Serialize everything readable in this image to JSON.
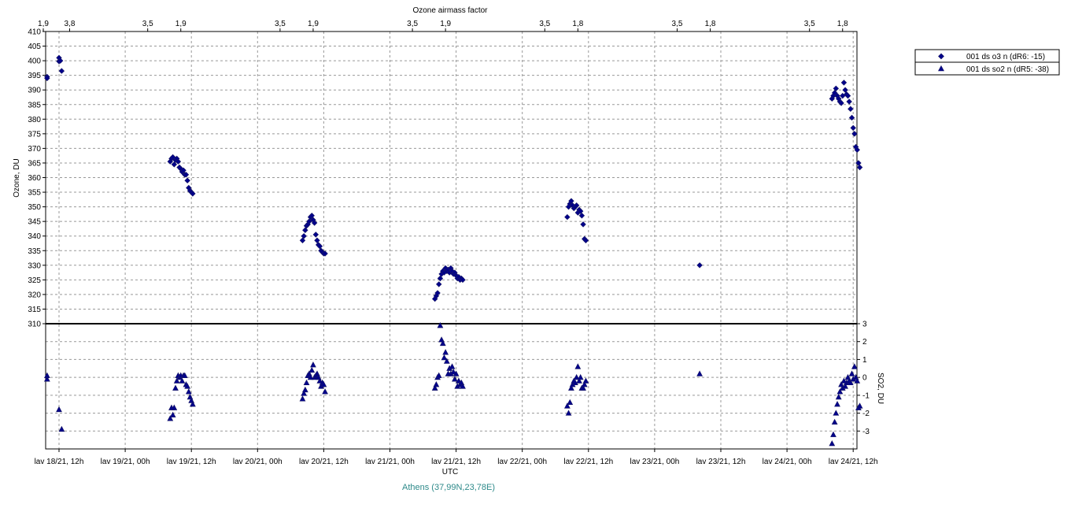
{
  "colors": {
    "marker": "#00008b",
    "marker_edge": "#1a1a66",
    "grid": "#999999",
    "caption": "#2e8a8a"
  },
  "chart_data": [
    {
      "type": "scatter",
      "panel": "top",
      "y_scale": "linear",
      "ylabel": "Ozone, DU",
      "ylim": [
        310,
        410
      ],
      "y_ticks": [
        "310",
        "315",
        "320",
        "325",
        "330",
        "335",
        "340",
        "345",
        "350",
        "355",
        "360",
        "365",
        "370",
        "375",
        "380",
        "385",
        "390",
        "395",
        "400",
        "405",
        "410"
      ],
      "top_axis_title": "Ozone airmass factor",
      "top_axis_ticks": [
        {
          "x": 0.0,
          "label": "1,9"
        },
        {
          "x": 0.08,
          "label": "3,8"
        },
        {
          "x": 0.67,
          "label": "3,5"
        },
        {
          "x": 0.92,
          "label": "1,9"
        },
        {
          "x": 1.67,
          "label": "3,5"
        },
        {
          "x": 1.92,
          "label": "1,9"
        },
        {
          "x": 2.67,
          "label": "3,5"
        },
        {
          "x": 2.92,
          "label": "1,9"
        },
        {
          "x": 3.67,
          "label": "3,5"
        },
        {
          "x": 3.92,
          "label": "1,8"
        },
        {
          "x": 4.67,
          "label": "3,5"
        },
        {
          "x": 4.92,
          "label": "1,8"
        },
        {
          "x": 5.67,
          "label": "3,5"
        },
        {
          "x": 5.92,
          "label": "1,8"
        }
      ],
      "series": [
        {
          "name": "001 ds o3  n (dR6: -15)",
          "marker": "diamond",
          "x": [
            -0.09,
            -0.09,
            0.0,
            0.0,
            0.01,
            0.02,
            0.84,
            0.85,
            0.86,
            0.87,
            0.88,
            0.89,
            0.9,
            0.91,
            0.92,
            0.93,
            0.94,
            0.95,
            0.96,
            0.97,
            0.98,
            0.99,
            1.0,
            1.01,
            1.84,
            1.85,
            1.86,
            1.87,
            1.88,
            1.89,
            1.9,
            1.91,
            1.92,
            1.93,
            1.94,
            1.95,
            1.96,
            1.97,
            1.98,
            1.99,
            2.0,
            2.01,
            2.84,
            2.85,
            2.86,
            2.87,
            2.88,
            2.89,
            2.9,
            2.91,
            2.92,
            2.93,
            2.94,
            2.95,
            2.96,
            2.97,
            2.98,
            2.99,
            3.0,
            3.01,
            3.02,
            3.03,
            3.04,
            3.05,
            3.84,
            3.85,
            3.86,
            3.87,
            3.88,
            3.89,
            3.9,
            3.91,
            3.92,
            3.93,
            3.94,
            3.95,
            3.96,
            3.97,
            3.98,
            4.84,
            5.84,
            5.85,
            5.86,
            5.87,
            5.88,
            5.89,
            5.9,
            5.91,
            5.92,
            5.93,
            5.94,
            5.95,
            5.96,
            5.97,
            5.98,
            5.99,
            6.0,
            6.01,
            6.02,
            6.03,
            6.04,
            6.05
          ],
          "y": [
            394.5,
            394,
            401,
            399.8,
            400,
            396.5,
            365.5,
            366.5,
            367,
            364.5,
            366,
            366.5,
            365.5,
            363.5,
            363,
            362,
            362.5,
            361,
            361,
            359,
            356.5,
            355.5,
            355,
            354.5,
            338.5,
            340,
            342,
            343.5,
            344,
            345,
            346.5,
            347,
            345.5,
            344.5,
            340.5,
            338.5,
            337,
            336.5,
            335,
            334.5,
            334,
            334,
            318.5,
            319.5,
            320.5,
            323.5,
            325.5,
            327,
            328,
            327.5,
            329,
            328,
            328.5,
            327.5,
            329,
            328,
            327,
            327.5,
            326.5,
            325.5,
            326,
            325,
            325.5,
            325,
            346.5,
            350,
            351,
            352,
            350.5,
            349.5,
            350,
            350.5,
            348,
            349,
            348.5,
            347,
            344,
            339,
            338.5,
            330,
            387,
            388,
            389,
            390.5,
            388,
            387,
            386,
            385.5,
            388,
            392.5,
            390,
            388.5,
            388,
            386,
            383.5,
            380.5,
            377,
            375,
            370.5,
            369.5,
            365,
            363.5
          ]
        }
      ]
    },
    {
      "type": "scatter",
      "panel": "bottom",
      "y_scale": "linear",
      "ylabel": "SO2, DU",
      "ylim": [
        -4,
        3
      ],
      "y_ticks": [
        "-3",
        "-2",
        "-1",
        "0",
        "1",
        "2",
        "3"
      ],
      "xlabel": "UTC",
      "x_ticks": [
        "lav 18/21, 12h",
        "lav 19/21, 00h",
        "lav 19/21, 12h",
        "lav 20/21, 00h",
        "lav 20/21, 12h",
        "lav 21/21, 00h",
        "lav 21/21, 12h",
        "lav 22/21, 00h",
        "lav 22/21, 12h",
        "lav 23/21, 00h",
        "lav 23/21, 12h",
        "lav 24/21, 00h",
        "lav 24/21, 12h"
      ],
      "series": [
        {
          "name": "001 ds so2 n (dR5: -38)",
          "marker": "triangle",
          "x": [
            -0.09,
            -0.09,
            0.0,
            0.02,
            0.84,
            0.85,
            0.86,
            0.87,
            0.88,
            0.89,
            0.9,
            0.91,
            0.92,
            0.93,
            0.94,
            0.95,
            0.96,
            0.97,
            0.98,
            0.99,
            1.0,
            1.01,
            1.84,
            1.85,
            1.86,
            1.87,
            1.88,
            1.89,
            1.9,
            1.91,
            1.92,
            1.93,
            1.94,
            1.95,
            1.96,
            1.97,
            1.98,
            1.99,
            2.0,
            2.01,
            2.84,
            2.85,
            2.86,
            2.87,
            2.88,
            2.89,
            2.9,
            2.91,
            2.92,
            2.93,
            2.94,
            2.95,
            2.96,
            2.97,
            2.98,
            2.99,
            3.0,
            3.01,
            3.02,
            3.03,
            3.04,
            3.05,
            3.84,
            3.85,
            3.86,
            3.87,
            3.88,
            3.89,
            3.9,
            3.91,
            3.92,
            3.93,
            3.94,
            3.95,
            3.96,
            3.97,
            3.98,
            4.84,
            5.84,
            5.85,
            5.86,
            5.87,
            5.88,
            5.89,
            5.9,
            5.91,
            5.92,
            5.93,
            5.94,
            5.95,
            5.96,
            5.97,
            5.98,
            5.99,
            6.0,
            6.01,
            6.02,
            6.03,
            6.04,
            6.05
          ],
          "y": [
            0.1,
            -0.1,
            -1.8,
            -2.9,
            -2.3,
            -1.7,
            -2.1,
            -1.7,
            -0.6,
            -0.2,
            0.1,
            0.0,
            0.1,
            -0.2,
            0.1,
            0.1,
            -0.4,
            -0.5,
            -0.8,
            -1.1,
            -1.3,
            -1.5,
            -1.2,
            -0.9,
            -0.7,
            -0.3,
            0.1,
            0.2,
            0.0,
            0.4,
            0.7,
            0.0,
            0.1,
            0.2,
            0.0,
            -0.2,
            -0.5,
            -0.3,
            -0.4,
            -0.8,
            -0.6,
            -0.4,
            0.0,
            0.1,
            2.9,
            2.1,
            1.9,
            1.1,
            1.4,
            0.9,
            0.2,
            0.5,
            0.2,
            0.6,
            0.3,
            -0.1,
            0.2,
            -0.5,
            -0.2,
            -0.4,
            -0.3,
            -0.5,
            -1.6,
            -2.0,
            -1.4,
            -0.6,
            -0.4,
            -0.2,
            -0.3,
            0.0,
            0.6,
            -0.2,
            0.0,
            -0.6,
            -0.6,
            -0.4,
            -0.2,
            0.2,
            -3.7,
            -3.2,
            -2.5,
            -2.0,
            -1.5,
            -1.1,
            -0.8,
            -0.4,
            -0.6,
            -0.2,
            -0.5,
            -0.3,
            0.0,
            -0.2,
            -0.3,
            0.2,
            -0.1,
            0.6,
            0.0,
            -0.2,
            -1.7,
            -1.6
          ]
        }
      ]
    }
  ],
  "caption": "Athens (37,99N,23,78E)"
}
